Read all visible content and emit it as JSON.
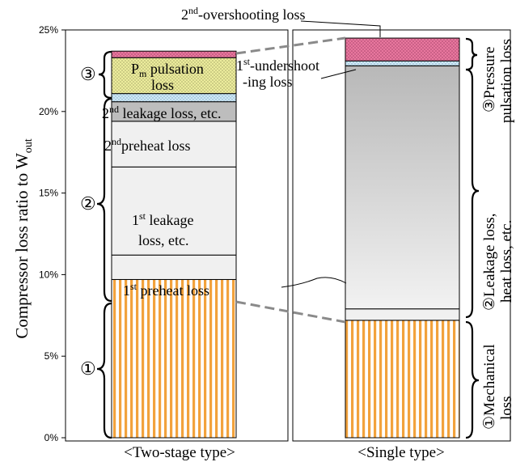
{
  "chart_data": {
    "type": "bar",
    "ylabel": "Compressor loss ratio to W",
    "ylabel_sub": "out",
    "ylim": [
      0,
      25
    ],
    "y_ticks": [
      {
        "value": 0,
        "label": "0%"
      },
      {
        "value": 5,
        "label": "5%"
      },
      {
        "value": 10,
        "label": "10%"
      },
      {
        "value": 15,
        "label": "15%"
      },
      {
        "value": 20,
        "label": "20%"
      },
      {
        "value": 25,
        "label": "25%"
      }
    ],
    "stacks": [
      {
        "name": "two-stage",
        "category": "<Two-stage type>",
        "segments": [
          {
            "key": "mechanical",
            "from": 0,
            "to": 9.7,
            "color": "#f2a23c",
            "pattern": "vstripes"
          },
          {
            "key": "pre1",
            "from": 9.7,
            "to": 11.2,
            "color": "#f0f0f0"
          },
          {
            "key": "leak1",
            "from": 11.2,
            "to": 16.6,
            "color": "#f0f0f0"
          },
          {
            "key": "pre2",
            "from": 16.6,
            "to": 19.4,
            "color": "#f0f0f0"
          },
          {
            "key": "leak2",
            "from": 19.4,
            "to": 20.6,
            "color": "#bdbdbd"
          },
          {
            "key": "under1",
            "from": 20.6,
            "to": 21.1,
            "color": "#cfe9f7",
            "pattern": "dots"
          },
          {
            "key": "pulsation",
            "from": 21.1,
            "to": 23.3,
            "color": "#ecec9c",
            "pattern": "dots"
          },
          {
            "key": "over2",
            "from": 23.3,
            "to": 23.7,
            "color": "#e8779e",
            "pattern": "dots"
          }
        ]
      },
      {
        "name": "single",
        "category": "<Single type>",
        "segments": [
          {
            "key": "mechanical",
            "from": 0,
            "to": 7.2,
            "color": "#f2a23c",
            "pattern": "vstripes"
          },
          {
            "key": "preheat",
            "from": 7.2,
            "to": 7.9,
            "color": "#f0f0f0"
          },
          {
            "key": "leak",
            "from": 7.9,
            "to": 22.8,
            "color": "#bdbdbd",
            "pattern": "gradient"
          },
          {
            "key": "under1",
            "from": 22.8,
            "to": 23.1,
            "color": "#cfe9f7",
            "pattern": "dots"
          },
          {
            "key": "over2",
            "from": 23.1,
            "to": 24.5,
            "color": "#e8779e",
            "pattern": "dots"
          }
        ]
      }
    ],
    "labels": {
      "over2": "-overshooting loss",
      "over2_num": "2",
      "over2_sup": "nd",
      "under1_line1": "-undershoot",
      "under1_num": "1",
      "under1_sup": "st",
      "under1_line2": "-ing loss",
      "pulsation_line1": "P",
      "pulsation_sub": "m",
      "pulsation_rest": " pulsation",
      "pulsation_line2": "loss",
      "leak2_num": "2",
      "leak2_sup": "nd",
      "leak2_text": " leakage loss, etc.",
      "pre2_num": "2",
      "pre2_sup": "nd",
      "pre2_text": "preheat loss",
      "leak1_num": "1",
      "leak1_sup": "st",
      "leak1_text": " leakage",
      "leak1_line2": "loss, etc.",
      "pre1_num": "1",
      "pre1_sup": "st",
      "pre1_text": " preheat loss"
    },
    "group_markers": {
      "left": [
        "③",
        "②",
        "①"
      ],
      "right": {
        "pressure_mark": "③",
        "pressure_line1": "Pressure",
        "pressure_line2": "pulsation loss",
        "leak_mark": "②",
        "leak_line1": "Leakage loss,",
        "leak_line2": "heat loss, etc.",
        "mech_mark": "①",
        "mech_line1": "Mechanical",
        "mech_line2": "loss"
      }
    }
  }
}
